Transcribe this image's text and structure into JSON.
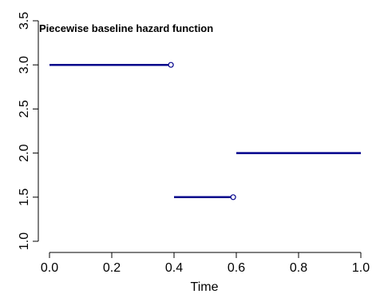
{
  "chart_data": {
    "type": "line",
    "title": "Piecewise baseline hazard function",
    "xlabel": "Time",
    "ylabel": "",
    "xlim": [
      0.0,
      1.0
    ],
    "ylim": [
      1.0,
      3.5
    ],
    "x_ticks": [
      "0.0",
      "0.2",
      "0.4",
      "0.6",
      "0.8",
      "1.0"
    ],
    "y_ticks": [
      "1.0",
      "1.5",
      "2.0",
      "2.5",
      "3.0",
      "3.5"
    ],
    "series_color": "#00008b",
    "segments": [
      {
        "x_start": 0.0,
        "x_end": 0.39,
        "y": 3.0,
        "open_end": true
      },
      {
        "x_start": 0.4,
        "x_end": 0.59,
        "y": 1.5,
        "open_end": true
      },
      {
        "x_start": 0.6,
        "x_end": 1.0,
        "y": 2.0,
        "open_end": false
      }
    ],
    "grid": false,
    "legend": "none"
  }
}
